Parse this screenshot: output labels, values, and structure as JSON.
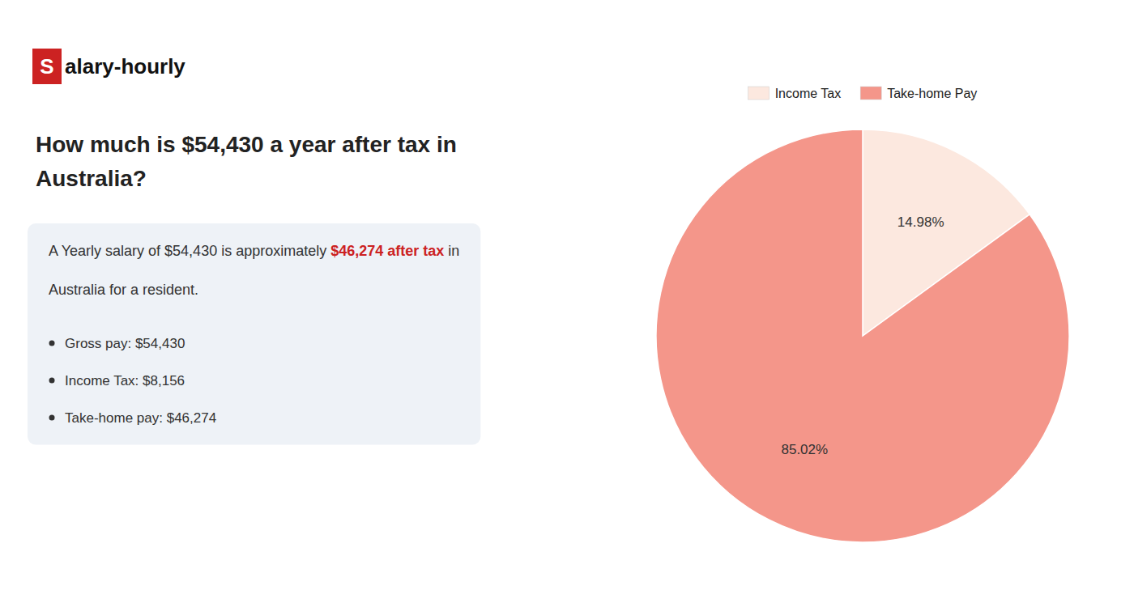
{
  "chart_data": {
    "type": "pie",
    "title": [
      "How much is $54,430 a year after tax in",
      "Australia?"
    ],
    "categories": [
      "Income Tax",
      "Take-home Pay"
    ],
    "values": [
      14.98,
      85.02
    ],
    "value_labels": [
      "14.98%",
      "85.02%"
    ],
    "colors": [
      "#fce8df",
      "#f4968a"
    ],
    "data_labels": true,
    "legend": "top",
    "annotations": [
      [
        {
          "text": "S",
          "color": "#cc2222"
        },
        {
          "text": "alary-hourly"
        }
      ],
      [
        {
          "text": "A Yearly salary of $54,430 is approximately "
        },
        {
          "text": "$46,274 after tax",
          "color": "#cc2222"
        },
        {
          "text": " in"
        }
      ],
      [
        {
          "text": "Australia for a resident."
        }
      ],
      [
        {
          "text": "Gross pay: $54,430"
        }
      ],
      [
        {
          "text": "Income Tax: $8,156"
        }
      ],
      [
        {
          "text": "Take-home pay: $46,274"
        }
      ]
    ]
  }
}
